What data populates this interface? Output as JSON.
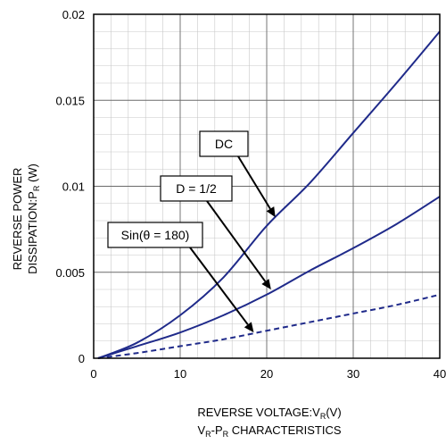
{
  "chart_data": {
    "type": "line",
    "title": "",
    "xlabel_main": "REVERSE VOLTAGE:V",
    "xlabel_sub": "R",
    "xlabel_unit": "(V)",
    "caption_a": "V",
    "caption_a_sub": "R",
    "caption_b": "-P",
    "caption_b_sub": "R",
    "caption_c": " CHARACTERISTICS",
    "ylabel_line1": "REVERSE POWER",
    "ylabel_line2_main": "DISSIPATION:P",
    "ylabel_line2_sub": "R",
    "ylabel_line2_unit": " (W)",
    "xlim": [
      0,
      40
    ],
    "ylim": [
      0,
      0.02
    ],
    "x_ticks": [
      0,
      10,
      20,
      30,
      40
    ],
    "x_tick_labels": [
      "0",
      "10",
      "20",
      "30",
      "40"
    ],
    "y_ticks": [
      0,
      0.005,
      0.01,
      0.015,
      0.02
    ],
    "y_tick_labels": [
      "0",
      "0.005",
      "0.01",
      "0.015",
      "0.02"
    ],
    "grid": true,
    "series": [
      {
        "name": "DC",
        "style": "solid",
        "color": "#1f2a8a",
        "x": [
          0.5,
          5,
          10,
          15,
          20,
          25,
          30,
          35,
          40
        ],
        "y": [
          0,
          0.0009,
          0.0025,
          0.0047,
          0.0077,
          0.0102,
          0.0131,
          0.016,
          0.019
        ]
      },
      {
        "name": "D = 1/2",
        "style": "solid",
        "color": "#1f2a8a",
        "x": [
          0.5,
          5,
          10,
          15,
          20,
          25,
          30,
          35,
          40
        ],
        "y": [
          0,
          0.0007,
          0.0015,
          0.0025,
          0.0037,
          0.0051,
          0.0064,
          0.0078,
          0.0094
        ]
      },
      {
        "name": "Sin(θ = 180)",
        "style": "dashed",
        "color": "#1f2a8a",
        "x": [
          0.5,
          5,
          10,
          15,
          20,
          25,
          30,
          35,
          40
        ],
        "y": [
          0,
          0.0003,
          0.0007,
          0.0011,
          0.0016,
          0.0021,
          0.0026,
          0.0031,
          0.0037
        ]
      }
    ],
    "annotations": [
      {
        "text": "DC",
        "target_x": 21,
        "target_y": 0.0082
      },
      {
        "text": "D = 1/2",
        "target_x": 20.5,
        "target_y": 0.004
      },
      {
        "text": "Sin(θ = 180)",
        "target_x": 18.5,
        "target_y": 0.0015
      }
    ]
  }
}
